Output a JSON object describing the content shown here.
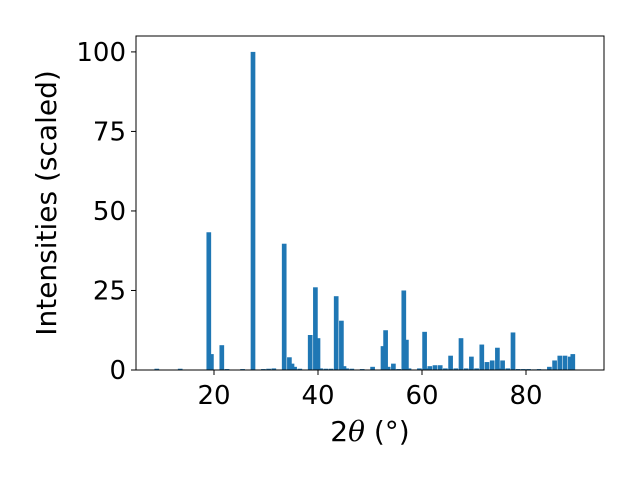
{
  "chart_data": {
    "type": "bar",
    "xlabel_prefix": "2",
    "xlabel_symbol": "θ",
    "xlabel_unit": " (°)",
    "ylabel": "Intensities (scaled)",
    "xlim": [
      5,
      95
    ],
    "ylim": [
      0,
      105
    ],
    "xticks": [
      20,
      40,
      60,
      80
    ],
    "yticks": [
      0,
      25,
      50,
      75,
      100
    ],
    "bar_color": "#1f77b4",
    "grid": false,
    "x": [
      9.0,
      13.5,
      19.0,
      19.5,
      21.5,
      22.5,
      25.5,
      27.5,
      29.5,
      30.5,
      31.5,
      33.5,
      34.5,
      35.0,
      35.5,
      36.5,
      38.5,
      39.5,
      40.0,
      40.5,
      41.5,
      42.5,
      43.5,
      44.5,
      45.0,
      45.5,
      46.5,
      48.5,
      50.5,
      52.5,
      53.0,
      53.5,
      54.5,
      55.5,
      56.5,
      57.0,
      57.5,
      59.5,
      60.5,
      61.0,
      61.5,
      62.5,
      63.5,
      64.5,
      65.5,
      66.5,
      67.5,
      68.5,
      69.5,
      70.5,
      71.5,
      72.5,
      73.5,
      74.5,
      75.0,
      75.5,
      76.5,
      77.5,
      78.5,
      79.5,
      80.5,
      81.5,
      82.5,
      83.5,
      84.5,
      85.5,
      86.5,
      87.5,
      88.5,
      89.0
    ],
    "values": [
      0.4,
      0.4,
      43.3,
      5.0,
      7.8,
      0.3,
      0.3,
      100.0,
      0.3,
      0.4,
      0.5,
      39.7,
      4.0,
      2.0,
      1.0,
      0.4,
      11.0,
      26.0,
      10.0,
      0.5,
      0.4,
      0.4,
      23.2,
      15.5,
      1.2,
      0.5,
      0.4,
      0.3,
      1.0,
      7.5,
      12.5,
      1.0,
      2.0,
      0.3,
      25.0,
      9.5,
      0.5,
      0.5,
      12.0,
      0.5,
      1.2,
      1.5,
      1.5,
      0.5,
      4.5,
      0.5,
      10.0,
      0.5,
      4.2,
      0.5,
      8.0,
      2.5,
      3.0,
      7.0,
      0.5,
      3.0,
      0.5,
      11.8,
      0.3,
      0.3,
      0.3,
      0.2,
      0.3,
      0.2,
      1.0,
      3.0,
      4.5,
      4.5,
      4.2,
      5.0
    ]
  }
}
